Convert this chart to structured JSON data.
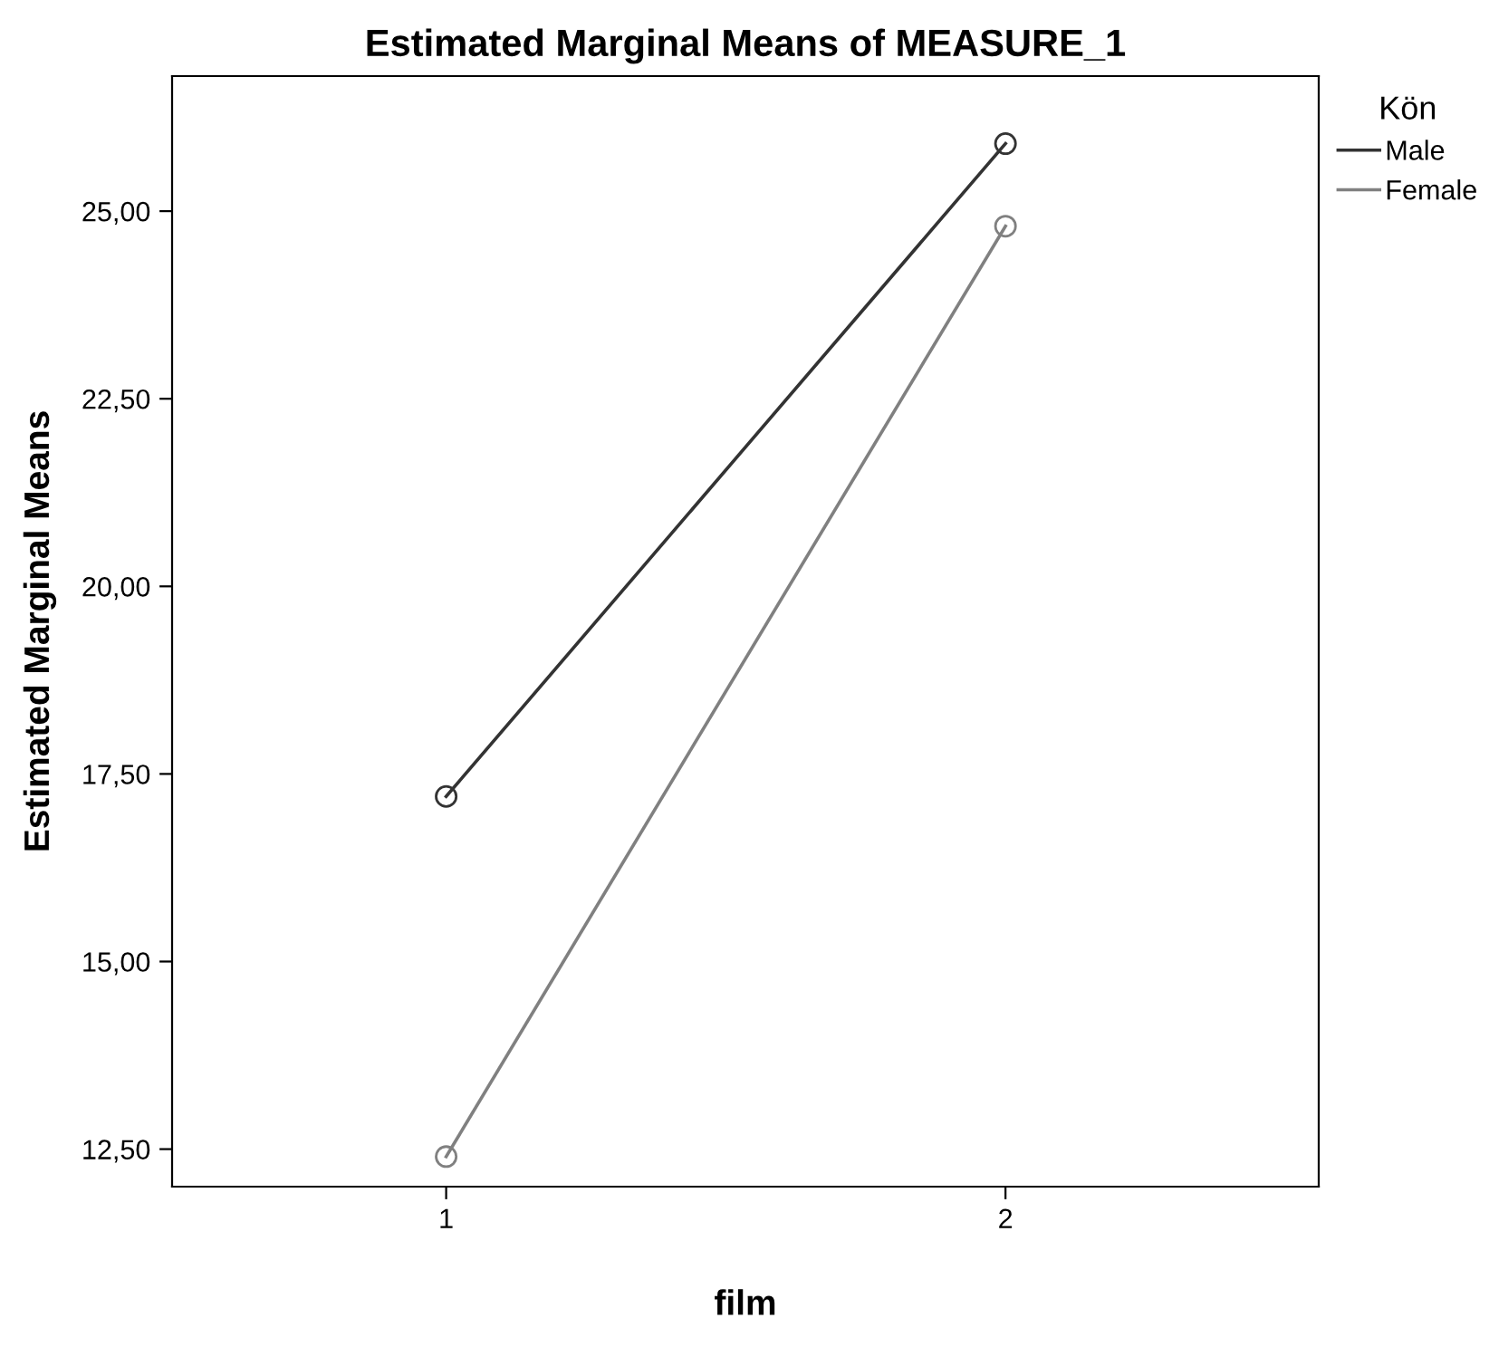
{
  "chart_data": {
    "type": "line",
    "title": "Estimated Marginal Means of MEASURE_1",
    "xlabel": "film",
    "ylabel": "Estimated Marginal Means",
    "legend_title": "Kön",
    "categories": [
      "1",
      "2"
    ],
    "series": [
      {
        "name": "Male",
        "color": "#333333",
        "values": [
          17.2,
          25.9
        ]
      },
      {
        "name": "Female",
        "color": "#808080",
        "values": [
          12.4,
          24.8
        ]
      }
    ],
    "ylim": [
      12.0,
      26.8
    ],
    "yticks": [
      {
        "value": 12.5,
        "label": "12,50"
      },
      {
        "value": 15,
        "label": "15,00"
      },
      {
        "value": 17.5,
        "label": "17,50"
      },
      {
        "value": 20,
        "label": "20,00"
      },
      {
        "value": 22.5,
        "label": "22,50"
      },
      {
        "value": 25,
        "label": "25,00"
      }
    ],
    "marker": "circle",
    "line_style": "solid",
    "grid": false,
    "legend": "top right"
  }
}
